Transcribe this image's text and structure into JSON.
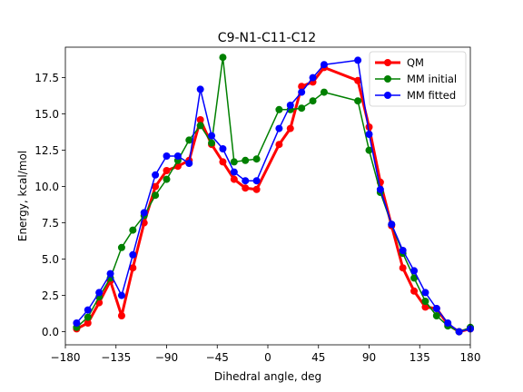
{
  "chart_data": {
    "type": "line",
    "title": "C9-N1-C11-C12",
    "xlabel": "Dihedral angle, deg",
    "ylabel": "Energy, kcal/mol",
    "xlim": [
      -180,
      180
    ],
    "ylim": [
      -0.9,
      19.6
    ],
    "xticks": [
      -180,
      -135,
      -90,
      -45,
      0,
      45,
      90,
      135,
      180
    ],
    "xtick_labels": [
      "−180",
      "−135",
      "−90",
      "−45",
      "0",
      "45",
      "90",
      "135",
      "180"
    ],
    "yticks": [
      0,
      2.5,
      5,
      7.5,
      10,
      12.5,
      15,
      17.5
    ],
    "ytick_labels": [
      "0.0",
      "2.5",
      "5.0",
      "7.5",
      "10.0",
      "12.5",
      "15.0",
      "17.5"
    ],
    "grid": false,
    "legend_position": "top-right",
    "series": [
      {
        "name": "QM",
        "color": "#ff0000",
        "points": [
          [
            -170,
            0.2
          ],
          [
            -160,
            0.6
          ],
          [
            -150,
            2.0
          ],
          [
            -140,
            3.5
          ],
          [
            -130,
            1.1
          ],
          [
            -120,
            4.4
          ],
          [
            -110,
            7.5
          ],
          [
            -100,
            10.0
          ],
          [
            -90,
            11.1
          ],
          [
            -80,
            11.4
          ],
          [
            -70,
            11.8
          ],
          [
            -60,
            14.6
          ],
          [
            -50,
            12.9
          ],
          [
            -40,
            11.7
          ],
          [
            -30,
            10.5
          ],
          [
            -20,
            9.9
          ],
          [
            -10,
            9.8
          ],
          [
            10,
            12.9
          ],
          [
            20,
            14.0
          ],
          [
            30,
            16.9
          ],
          [
            40,
            17.2
          ],
          [
            50,
            18.2
          ],
          [
            80,
            17.3
          ],
          [
            90,
            14.1
          ],
          [
            100,
            10.3
          ],
          [
            110,
            7.3
          ],
          [
            120,
            4.4
          ],
          [
            130,
            2.8
          ],
          [
            140,
            1.7
          ],
          [
            150,
            1.6
          ],
          [
            160,
            0.5
          ],
          [
            170,
            0.0
          ],
          [
            180,
            0.2
          ]
        ]
      },
      {
        "name": "MM initial",
        "color": "#008000",
        "points": [
          [
            -170,
            0.3
          ],
          [
            -160,
            1.0
          ],
          [
            -150,
            2.4
          ],
          [
            -140,
            3.7
          ],
          [
            -130,
            5.8
          ],
          [
            -120,
            7.0
          ],
          [
            -110,
            8.0
          ],
          [
            -100,
            9.4
          ],
          [
            -90,
            10.5
          ],
          [
            -80,
            11.8
          ],
          [
            -70,
            13.2
          ],
          [
            -60,
            14.2
          ],
          [
            -50,
            13.0
          ],
          [
            -40,
            18.9
          ],
          [
            -30,
            11.7
          ],
          [
            -20,
            11.8
          ],
          [
            -10,
            11.9
          ],
          [
            10,
            15.3
          ],
          [
            20,
            15.3
          ],
          [
            30,
            15.4
          ],
          [
            40,
            15.9
          ],
          [
            50,
            16.5
          ],
          [
            80,
            15.9
          ],
          [
            90,
            12.5
          ],
          [
            100,
            9.6
          ],
          [
            110,
            7.4
          ],
          [
            120,
            5.4
          ],
          [
            130,
            3.7
          ],
          [
            140,
            2.1
          ],
          [
            150,
            1.1
          ],
          [
            160,
            0.4
          ],
          [
            170,
            0.0
          ],
          [
            180,
            0.3
          ]
        ]
      },
      {
        "name": "MM fitted",
        "color": "#0000ff",
        "points": [
          [
            -170,
            0.6
          ],
          [
            -160,
            1.5
          ],
          [
            -150,
            2.7
          ],
          [
            -140,
            4.0
          ],
          [
            -130,
            2.5
          ],
          [
            -120,
            5.3
          ],
          [
            -110,
            8.2
          ],
          [
            -100,
            10.8
          ],
          [
            -90,
            12.1
          ],
          [
            -80,
            12.1
          ],
          [
            -70,
            11.6
          ],
          [
            -60,
            16.7
          ],
          [
            -50,
            13.5
          ],
          [
            -40,
            12.6
          ],
          [
            -30,
            11.0
          ],
          [
            -20,
            10.4
          ],
          [
            -10,
            10.4
          ],
          [
            10,
            14.0
          ],
          [
            20,
            15.6
          ],
          [
            30,
            16.5
          ],
          [
            40,
            17.5
          ],
          [
            50,
            18.4
          ],
          [
            80,
            18.7
          ],
          [
            90,
            13.6
          ],
          [
            100,
            9.8
          ],
          [
            110,
            7.4
          ],
          [
            120,
            5.6
          ],
          [
            130,
            4.2
          ],
          [
            140,
            2.7
          ],
          [
            150,
            1.6
          ],
          [
            160,
            0.6
          ],
          [
            170,
            0.0
          ],
          [
            180,
            0.2
          ]
        ]
      }
    ]
  }
}
